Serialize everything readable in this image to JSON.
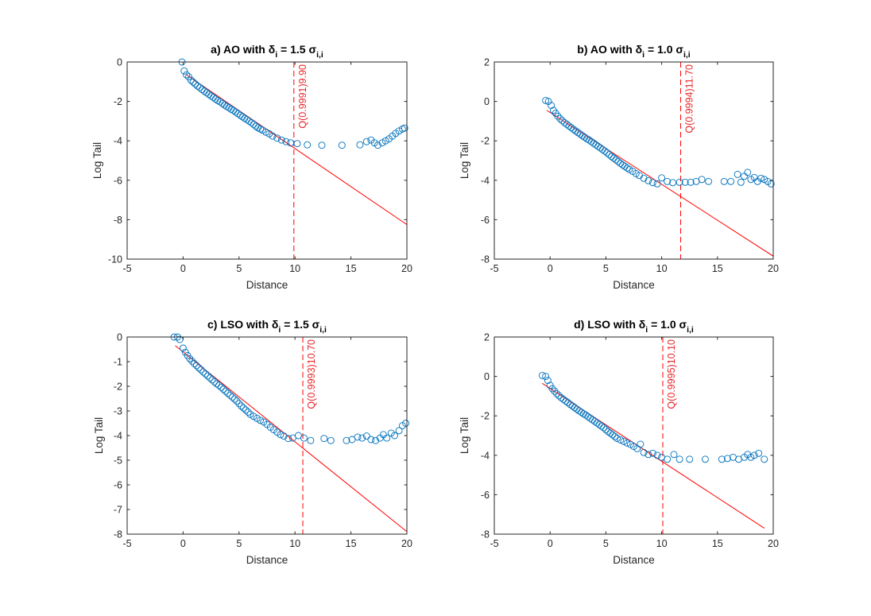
{
  "figure": {
    "xlabel": "Distance",
    "ylabel": "Log Tail"
  },
  "colors": {
    "marker": "#0072bd",
    "fit": "#ff0000",
    "axis": "#262626"
  },
  "chart_data": [
    {
      "type": "scatter",
      "title_prefix": "a) AO with δ",
      "title_sub1": "i",
      "title_mid": " = 1.5 σ",
      "title_sub2": "i,i",
      "xlabel": "Distance",
      "ylabel": "Log Tail",
      "xlim": [
        -5,
        20
      ],
      "ylim": [
        -10,
        0
      ],
      "xticks": [
        -5,
        0,
        5,
        10,
        15,
        20
      ],
      "yticks": [
        -10,
        -8,
        -6,
        -4,
        -2,
        0
      ],
      "fit_line": {
        "x": [
          0.3,
          20
        ],
        "y": [
          -0.65,
          -8.25
        ]
      },
      "threshold": {
        "x": 9.9,
        "label": "Q(0.9991)9.90"
      },
      "x": [
        -0.1,
        0.1,
        0.3,
        0.5,
        0.7,
        0.9,
        1.1,
        1.3,
        1.5,
        1.7,
        1.9,
        2.1,
        2.3,
        2.5,
        2.7,
        2.9,
        3.1,
        3.3,
        3.5,
        3.7,
        3.9,
        4.1,
        4.3,
        4.5,
        4.7,
        4.9,
        5.1,
        5.3,
        5.5,
        5.7,
        5.9,
        6.1,
        6.3,
        6.5,
        6.7,
        6.9,
        7.1,
        7.4,
        7.7,
        8.0,
        8.4,
        8.8,
        9.2,
        9.6,
        10.2,
        11.1,
        12.4,
        14.2,
        15.8,
        16.4,
        16.8,
        17.1,
        17.4,
        17.8,
        18.1,
        18.4,
        18.7,
        19.0,
        19.3,
        19.6,
        19.8
      ],
      "y": [
        0.0,
        -0.45,
        -0.65,
        -0.75,
        -0.92,
        -1.02,
        -1.12,
        -1.22,
        -1.3,
        -1.4,
        -1.48,
        -1.56,
        -1.64,
        -1.72,
        -1.8,
        -1.88,
        -1.96,
        -2.02,
        -2.1,
        -2.18,
        -2.26,
        -2.32,
        -2.4,
        -2.46,
        -2.54,
        -2.62,
        -2.7,
        -2.78,
        -2.86,
        -2.92,
        -3.0,
        -3.08,
        -3.16,
        -3.26,
        -3.34,
        -3.4,
        -3.46,
        -3.56,
        -3.64,
        -3.76,
        -3.86,
        -3.96,
        -4.04,
        -4.1,
        -4.14,
        -4.2,
        -4.22,
        -4.22,
        -4.2,
        -4.04,
        -3.96,
        -4.1,
        -4.22,
        -4.1,
        -4.0,
        -3.9,
        -3.76,
        -3.62,
        -3.5,
        -3.4,
        -3.35
      ]
    },
    {
      "type": "scatter",
      "title_prefix": "b) AO with δ",
      "title_sub1": "i",
      "title_mid": " = 1.0 σ",
      "title_sub2": "i,i",
      "xlabel": "Distance",
      "ylabel": "Log Tail",
      "xlim": [
        -5,
        20
      ],
      "ylim": [
        -8,
        2
      ],
      "xticks": [
        -5,
        0,
        5,
        10,
        15,
        20
      ],
      "yticks": [
        -8,
        -6,
        -4,
        -2,
        0,
        2
      ],
      "fit_line": {
        "x": [
          -0.3,
          20
        ],
        "y": [
          -0.45,
          -7.85
        ]
      },
      "threshold": {
        "x": 11.7,
        "label": "Q(0.9994)11.70"
      },
      "x": [
        -0.4,
        -0.15,
        0.1,
        0.3,
        0.5,
        0.7,
        0.9,
        1.1,
        1.3,
        1.5,
        1.7,
        1.9,
        2.1,
        2.3,
        2.5,
        2.7,
        2.9,
        3.1,
        3.3,
        3.5,
        3.7,
        3.9,
        4.1,
        4.3,
        4.5,
        4.7,
        4.9,
        5.1,
        5.3,
        5.5,
        5.7,
        5.9,
        6.1,
        6.3,
        6.5,
        6.7,
        6.9,
        7.1,
        7.4,
        7.7,
        8.0,
        8.4,
        8.8,
        9.2,
        9.6,
        10.0,
        10.5,
        11.0,
        11.6,
        12.1,
        12.6,
        13.1,
        13.6,
        14.2,
        15.6,
        16.2,
        16.8,
        17.1,
        17.4,
        17.7,
        18.0,
        18.3,
        18.6,
        18.9,
        19.2,
        19.5,
        19.8
      ],
      "y": [
        0.05,
        0.0,
        -0.2,
        -0.45,
        -0.6,
        -0.75,
        -0.88,
        -0.98,
        -1.08,
        -1.16,
        -1.25,
        -1.33,
        -1.42,
        -1.5,
        -1.58,
        -1.66,
        -1.74,
        -1.82,
        -1.9,
        -1.96,
        -2.04,
        -2.12,
        -2.2,
        -2.28,
        -2.36,
        -2.44,
        -2.52,
        -2.6,
        -2.7,
        -2.8,
        -2.88,
        -2.96,
        -3.05,
        -3.14,
        -3.22,
        -3.3,
        -3.38,
        -3.45,
        -3.55,
        -3.66,
        -3.76,
        -3.9,
        -4.02,
        -4.12,
        -4.18,
        -3.88,
        -4.06,
        -4.12,
        -4.1,
        -4.1,
        -4.1,
        -4.06,
        -3.96,
        -4.06,
        -4.06,
        -4.06,
        -3.7,
        -4.1,
        -3.8,
        -3.6,
        -3.96,
        -3.86,
        -4.06,
        -3.9,
        -3.96,
        -4.06,
        -4.18
      ]
    },
    {
      "type": "scatter",
      "title_prefix": "c) LSO with δ",
      "title_sub1": "i",
      "title_mid": " = 1.5 σ",
      "title_sub2": "i,i",
      "xlabel": "Distance",
      "ylabel": "Log Tail",
      "xlim": [
        -5,
        20
      ],
      "ylim": [
        -8,
        0
      ],
      "xticks": [
        -5,
        0,
        5,
        10,
        15,
        20
      ],
      "yticks": [
        -8,
        -7,
        -6,
        -5,
        -4,
        -3,
        -2,
        -1,
        0
      ],
      "fit_line": {
        "x": [
          -0.7,
          20
        ],
        "y": [
          -0.35,
          -7.9
        ]
      },
      "threshold": {
        "x": 10.7,
        "label": "Q(0.9993)10.70"
      },
      "x": [
        -0.8,
        -0.5,
        -0.3,
        0.0,
        0.2,
        0.4,
        0.6,
        0.8,
        1.0,
        1.2,
        1.4,
        1.6,
        1.8,
        2.0,
        2.2,
        2.4,
        2.6,
        2.8,
        3.0,
        3.2,
        3.4,
        3.6,
        3.8,
        4.0,
        4.2,
        4.4,
        4.6,
        4.8,
        5.0,
        5.2,
        5.4,
        5.6,
        5.8,
        6.0,
        6.3,
        6.6,
        6.9,
        7.2,
        7.5,
        7.8,
        8.1,
        8.4,
        8.7,
        9.0,
        9.4,
        9.8,
        10.3,
        10.8,
        11.4,
        12.6,
        13.2,
        14.6,
        15.1,
        15.6,
        16.0,
        16.4,
        16.8,
        17.2,
        17.6,
        17.9,
        18.2,
        18.6,
        18.9,
        19.3,
        19.6,
        19.9
      ],
      "y": [
        0.0,
        0.0,
        -0.1,
        -0.45,
        -0.62,
        -0.75,
        -0.88,
        -0.98,
        -1.08,
        -1.16,
        -1.25,
        -1.33,
        -1.42,
        -1.5,
        -1.58,
        -1.66,
        -1.74,
        -1.82,
        -1.9,
        -1.96,
        -2.04,
        -2.12,
        -2.2,
        -2.28,
        -2.36,
        -2.44,
        -2.52,
        -2.6,
        -2.7,
        -2.8,
        -2.88,
        -2.96,
        -3.05,
        -3.14,
        -3.22,
        -3.3,
        -3.38,
        -3.45,
        -3.55,
        -3.66,
        -3.76,
        -3.86,
        -3.96,
        -4.02,
        -4.12,
        -4.1,
        -4.0,
        -4.1,
        -4.2,
        -4.12,
        -4.2,
        -4.2,
        -4.16,
        -4.06,
        -4.1,
        -4.02,
        -4.16,
        -4.2,
        -4.1,
        -3.96,
        -4.1,
        -3.9,
        -4.0,
        -3.8,
        -3.6,
        -3.5
      ]
    },
    {
      "type": "scatter",
      "title_prefix": "d) LSO with δ",
      "title_sub1": "i",
      "title_mid": " = 1.0 σ",
      "title_sub2": "i,i",
      "xlabel": "Distance",
      "ylabel": "Log Tail",
      "xlim": [
        -5,
        20
      ],
      "ylim": [
        -8,
        2
      ],
      "xticks": [
        -5,
        0,
        5,
        10,
        15,
        20
      ],
      "yticks": [
        -8,
        -6,
        -4,
        -2,
        0,
        2
      ],
      "fit_line": {
        "x": [
          -0.7,
          19.2
        ],
        "y": [
          -0.35,
          -7.7
        ]
      },
      "threshold": {
        "x": 10.1,
        "label": "Q(0.9995)10.10"
      },
      "x": [
        -0.7,
        -0.4,
        -0.2,
        0.0,
        0.2,
        0.4,
        0.6,
        0.8,
        1.0,
        1.2,
        1.4,
        1.6,
        1.8,
        2.0,
        2.2,
        2.4,
        2.6,
        2.8,
        3.0,
        3.2,
        3.4,
        3.6,
        3.8,
        4.0,
        4.2,
        4.4,
        4.6,
        4.8,
        5.0,
        5.2,
        5.4,
        5.6,
        5.8,
        6.0,
        6.3,
        6.6,
        6.9,
        7.2,
        7.5,
        7.8,
        8.1,
        8.4,
        8.8,
        9.2,
        9.6,
        10.0,
        10.5,
        11.1,
        11.6,
        12.5,
        13.9,
        15.4,
        15.9,
        16.4,
        16.9,
        17.4,
        17.7,
        18.0,
        18.3,
        18.7,
        19.2
      ],
      "y": [
        0.05,
        0.0,
        -0.2,
        -0.45,
        -0.62,
        -0.75,
        -0.88,
        -0.98,
        -1.08,
        -1.16,
        -1.25,
        -1.33,
        -1.42,
        -1.5,
        -1.58,
        -1.66,
        -1.74,
        -1.82,
        -1.9,
        -1.96,
        -2.04,
        -2.12,
        -2.2,
        -2.28,
        -2.36,
        -2.44,
        -2.52,
        -2.6,
        -2.7,
        -2.8,
        -2.88,
        -2.96,
        -3.05,
        -3.14,
        -3.22,
        -3.3,
        -3.38,
        -3.45,
        -3.55,
        -3.66,
        -3.44,
        -3.86,
        -3.96,
        -3.9,
        -4.0,
        -4.1,
        -4.2,
        -3.96,
        -4.2,
        -4.2,
        -4.2,
        -4.2,
        -4.16,
        -4.1,
        -4.2,
        -4.1,
        -3.96,
        -4.1,
        -4.0,
        -3.9,
        -4.2
      ]
    }
  ]
}
